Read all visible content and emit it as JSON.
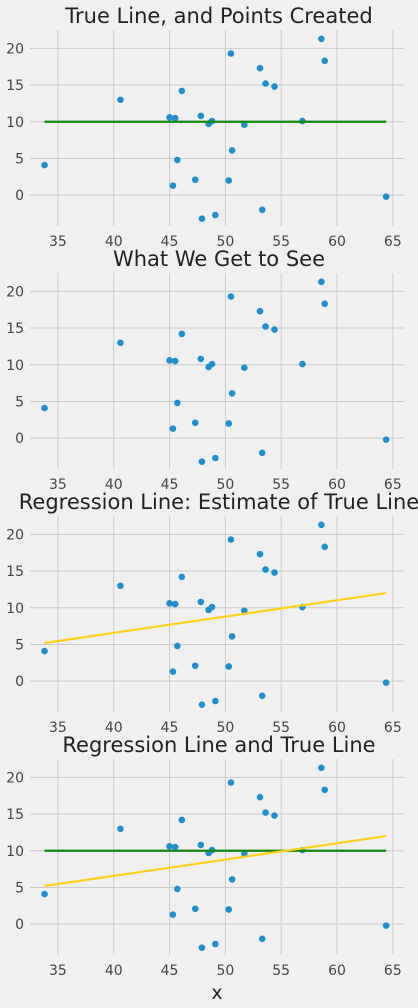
{
  "figure": {
    "background": "#f0f0f0",
    "xlabel": "x"
  },
  "colors": {
    "points": "#1f8fcf",
    "true_line": "#118811",
    "regression_line": "#ffd21a",
    "grid": "#cbcbcb",
    "panel": "#f0f0f0"
  },
  "chart_data": [
    {
      "type": "scatter",
      "title": "True Line, and Points Created",
      "xlim": [
        32.5,
        66
      ],
      "ylim": [
        -4.2,
        22.5
      ],
      "xticks": [
        35,
        40,
        45,
        50,
        55,
        60,
        65
      ],
      "yticks": [
        0,
        5,
        10,
        15,
        20
      ],
      "grid": true,
      "points_ref": "points",
      "lines": [
        {
          "name": "",
          "color_ref": "true_line",
          "x": [
            33.8,
            64.4
          ],
          "y": [
            10,
            10
          ]
        }
      ]
    },
    {
      "type": "scatter",
      "title": "What We Get to See",
      "xlim": [
        32.5,
        66
      ],
      "ylim": [
        -4.2,
        22.5
      ],
      "xticks": [
        35,
        40,
        45,
        50,
        55,
        60,
        65
      ],
      "yticks": [
        0,
        5,
        10,
        15,
        20
      ],
      "grid": true,
      "points_ref": "points",
      "lines": []
    },
    {
      "type": "scatter",
      "title": "Regression Line: Estimate of True Line",
      "xlim": [
        32.5,
        66
      ],
      "ylim": [
        -4.2,
        22.5
      ],
      "xticks": [
        35,
        40,
        45,
        50,
        55,
        60,
        65
      ],
      "yticks": [
        0,
        5,
        10,
        15,
        20
      ],
      "grid": true,
      "points_ref": "points",
      "lines": [
        {
          "name": "",
          "color_ref": "regression_line",
          "x": [
            33.8,
            64.4
          ],
          "y": [
            5.2,
            12.0
          ]
        }
      ]
    },
    {
      "type": "scatter",
      "title": "Regression Line and True Line",
      "xlim": [
        32.5,
        66
      ],
      "ylim": [
        -4.2,
        22.5
      ],
      "xticks": [
        35,
        40,
        45,
        50,
        55,
        60,
        65
      ],
      "yticks": [
        0,
        5,
        10,
        15,
        20
      ],
      "grid": true,
      "xlabel": "x",
      "points_ref": "points",
      "lines": [
        {
          "name": "",
          "color_ref": "true_line",
          "x": [
            33.8,
            64.4
          ],
          "y": [
            10,
            10
          ]
        },
        {
          "name": "",
          "color_ref": "regression_line",
          "x": [
            33.8,
            64.4
          ],
          "y": [
            5.2,
            12.0
          ]
        }
      ]
    }
  ],
  "points": [
    [
      33.8,
      4.1
    ],
    [
      40.6,
      13.0
    ],
    [
      45.0,
      10.6
    ],
    [
      45.5,
      10.5
    ],
    [
      45.7,
      4.8
    ],
    [
      45.3,
      1.3
    ],
    [
      46.1,
      14.2
    ],
    [
      47.3,
      2.1
    ],
    [
      47.8,
      10.8
    ],
    [
      47.9,
      -3.2
    ],
    [
      48.5,
      9.7
    ],
    [
      48.8,
      10.1
    ],
    [
      49.1,
      -2.7
    ],
    [
      50.3,
      2.0
    ],
    [
      50.5,
      19.3
    ],
    [
      50.6,
      6.1
    ],
    [
      51.7,
      9.6
    ],
    [
      53.1,
      17.3
    ],
    [
      53.3,
      -2.0
    ],
    [
      53.6,
      15.2
    ],
    [
      54.4,
      14.8
    ],
    [
      56.9,
      10.1
    ],
    [
      58.6,
      21.3
    ],
    [
      58.9,
      18.3
    ],
    [
      64.4,
      -0.2
    ]
  ]
}
